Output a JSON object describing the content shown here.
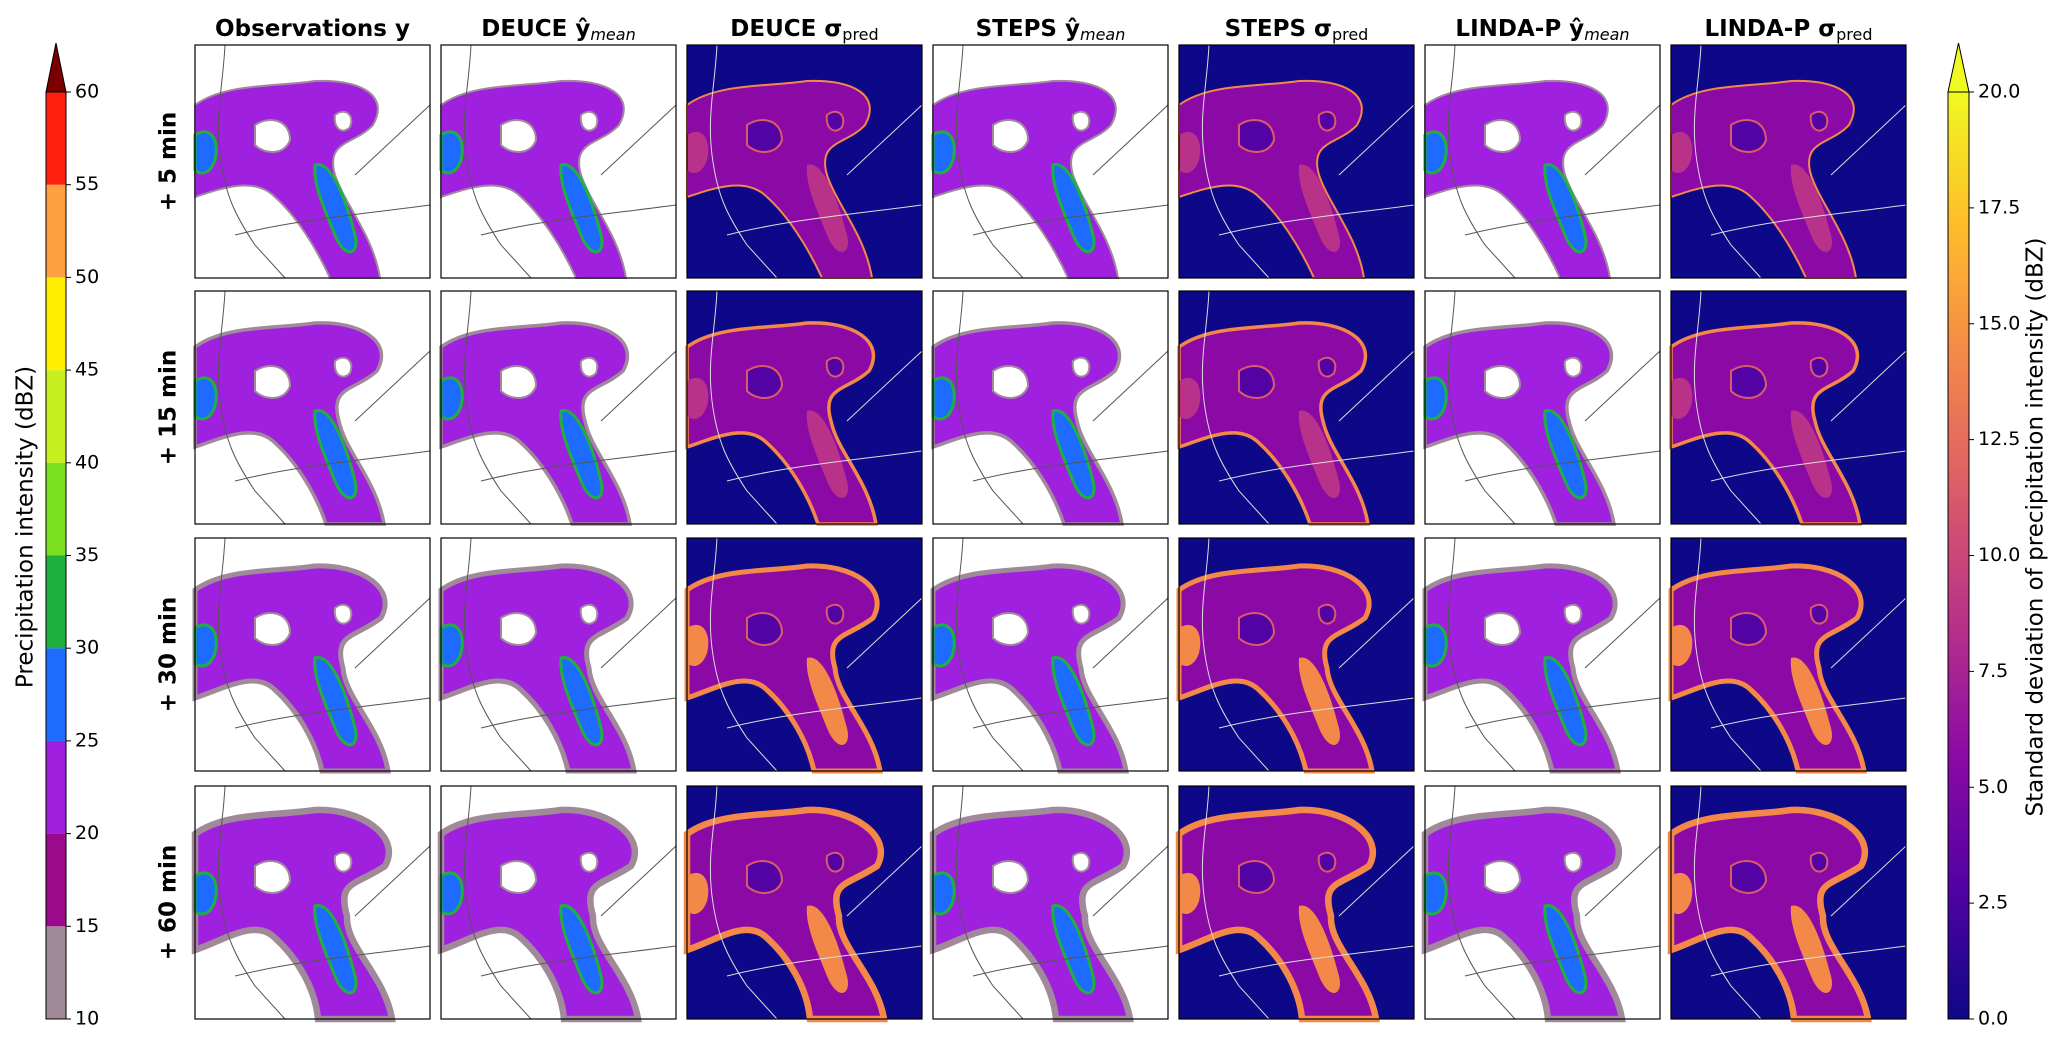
{
  "figure": {
    "columns": [
      {
        "main": "Observations y",
        "sub": null,
        "sub_style": null,
        "kind": "intensity"
      },
      {
        "main": "DEUCE ŷ",
        "sub": "mean",
        "sub_style": "italic",
        "kind": "intensity"
      },
      {
        "main": "DEUCE σ",
        "sub": "pred",
        "sub_style": "normal",
        "kind": "std"
      },
      {
        "main": "STEPS ŷ",
        "sub": "mean",
        "sub_style": "italic",
        "kind": "intensity"
      },
      {
        "main": "STEPS σ",
        "sub": "pred",
        "sub_style": "normal",
        "kind": "std"
      },
      {
        "main": "LINDA-P ŷ",
        "sub": "mean",
        "sub_style": "italic",
        "kind": "intensity"
      },
      {
        "main": "LINDA-P σ",
        "sub": "pred",
        "sub_style": "normal",
        "kind": "std"
      }
    ],
    "rows": [
      "+ 5 min",
      "+ 15 min",
      "+ 30 min",
      "+ 60 min"
    ],
    "left_colorbar": {
      "label": "Precipitation intensity (dBZ)",
      "lim": [
        10,
        60
      ],
      "ticks": [
        10,
        15,
        20,
        25,
        30,
        35,
        40,
        45,
        50,
        55,
        60
      ],
      "colors": [
        "#a08a9a",
        "#9a0a8a",
        "#a020e0",
        "#1e6cff",
        "#20b040",
        "#7ae020",
        "#c8f020",
        "#ffee00",
        "#ffa040",
        "#ff2010"
      ],
      "extend_color": "#7a0000"
    },
    "right_colorbar": {
      "label": "Standard deviation of precipitation intensity (dBZ)",
      "lim": [
        0,
        20
      ],
      "ticks": [
        {
          "value": 0,
          "label": "0.0"
        },
        2.5,
        {
          "value": 5,
          "label": "5.0"
        },
        7.5,
        {
          "value": 10,
          "label": "10.0"
        },
        12.5,
        {
          "value": 15,
          "label": "15.0"
        },
        17.5,
        {
          "value": 20,
          "label": "20.0"
        }
      ],
      "colormap": [
        "#0d0887",
        "#5302a3",
        "#8b0aa5",
        "#b83289",
        "#db5c68",
        "#f48849",
        "#febd2a",
        "#f0f921"
      ],
      "extend_color": "#f0f921"
    }
  }
}
